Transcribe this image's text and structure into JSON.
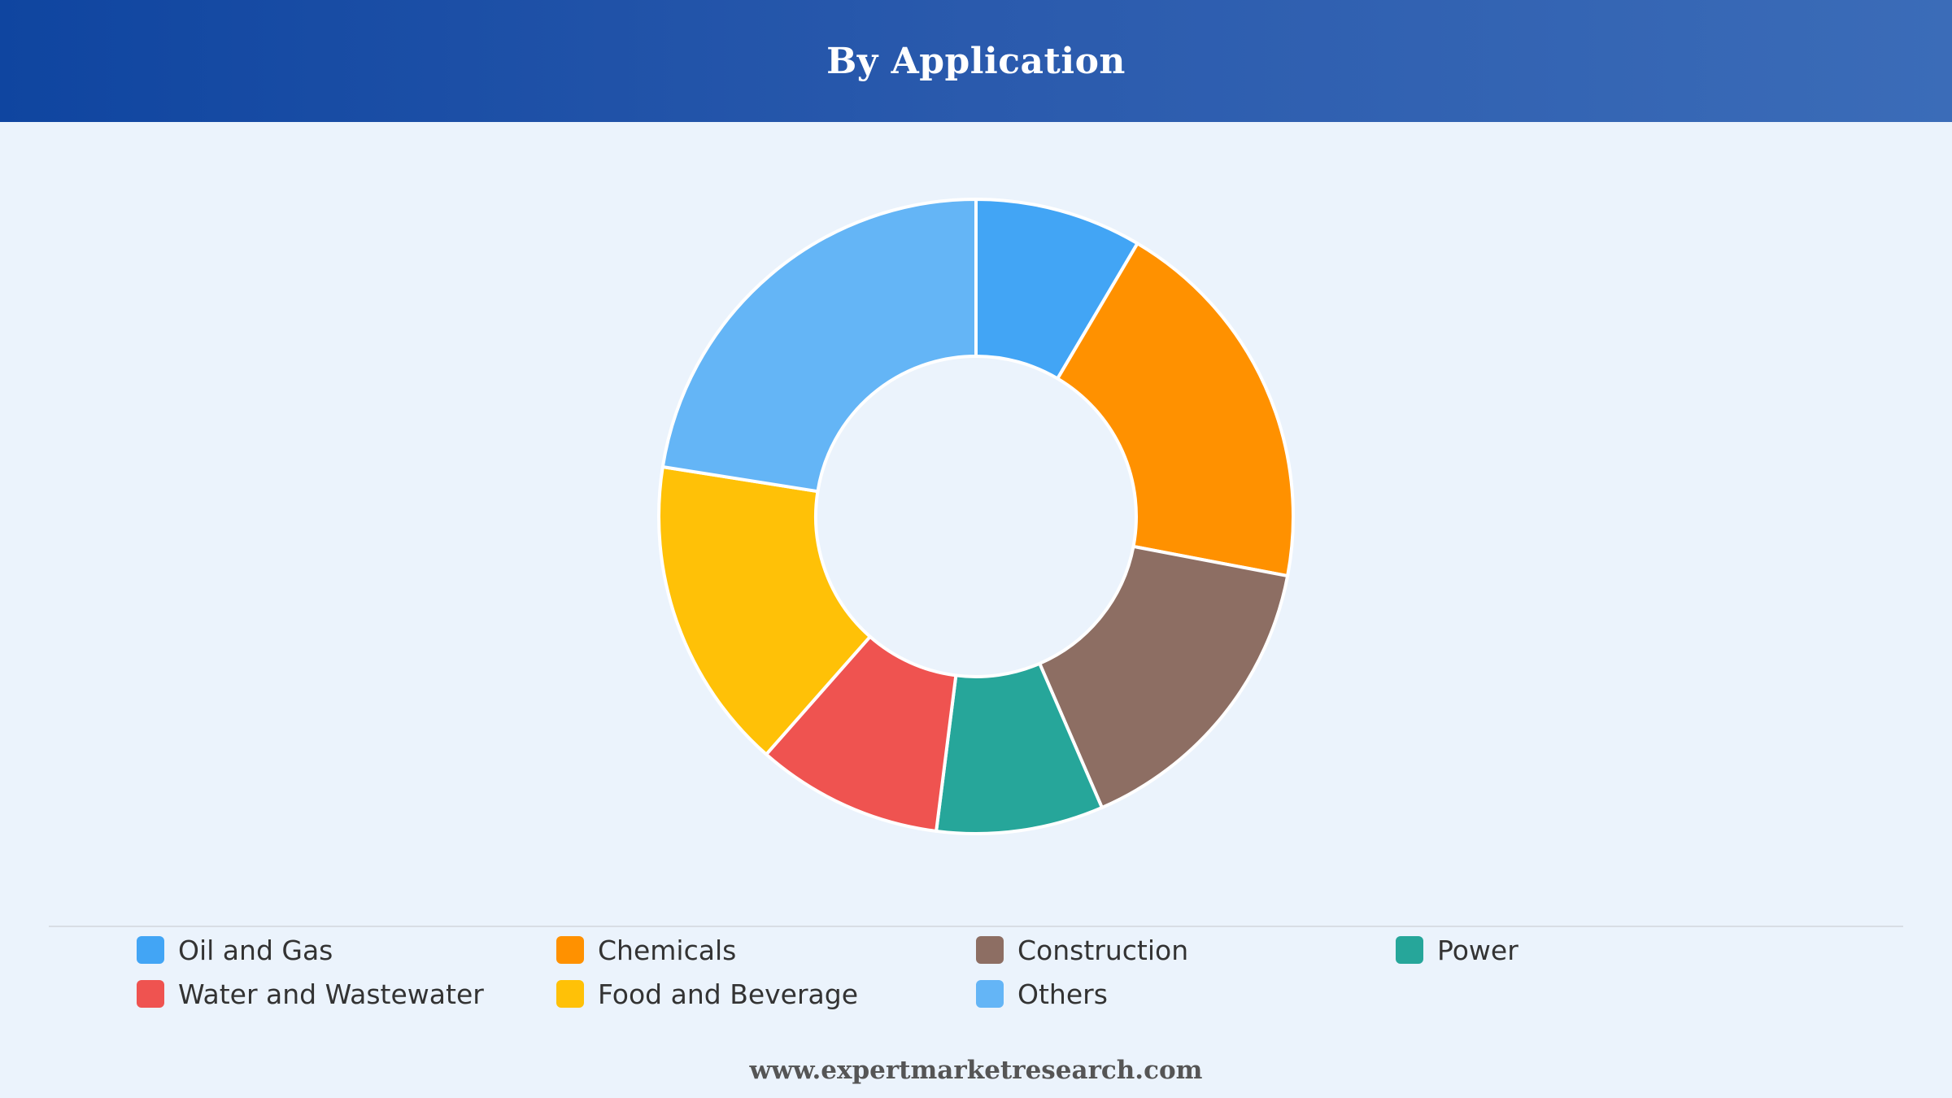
{
  "header": {
    "title": "By Application"
  },
  "chart_data": {
    "type": "pie",
    "variant": "donut",
    "title": "By Application",
    "categories": [
      "Oil and Gas",
      "Chemicals",
      "Construction",
      "Power",
      "Water and Wastewater",
      "Food and Beverage",
      "Others"
    ],
    "values": [
      8.5,
      19.5,
      15.5,
      8.5,
      9.5,
      16.0,
      22.5
    ],
    "colors": [
      "#42a5f5",
      "#ff9100",
      "#8d6e63",
      "#26a69a",
      "#ef5350",
      "#ffc107",
      "#64b5f6"
    ],
    "legend_position": "bottom",
    "start_angle_deg": 0,
    "direction": "clockwise"
  },
  "legend": {
    "items": [
      {
        "label": "Oil and Gas",
        "color": "#42a5f5"
      },
      {
        "label": "Chemicals",
        "color": "#ff9100"
      },
      {
        "label": "Construction",
        "color": "#8d6e63"
      },
      {
        "label": "Power",
        "color": "#26a69a"
      },
      {
        "label": "Water and Wastewater",
        "color": "#ef5350"
      },
      {
        "label": "Food and Beverage",
        "color": "#ffc107"
      },
      {
        "label": "Others",
        "color": "#64b5f6"
      }
    ]
  },
  "footer": {
    "source": "www.expertmarketresearch.com"
  }
}
